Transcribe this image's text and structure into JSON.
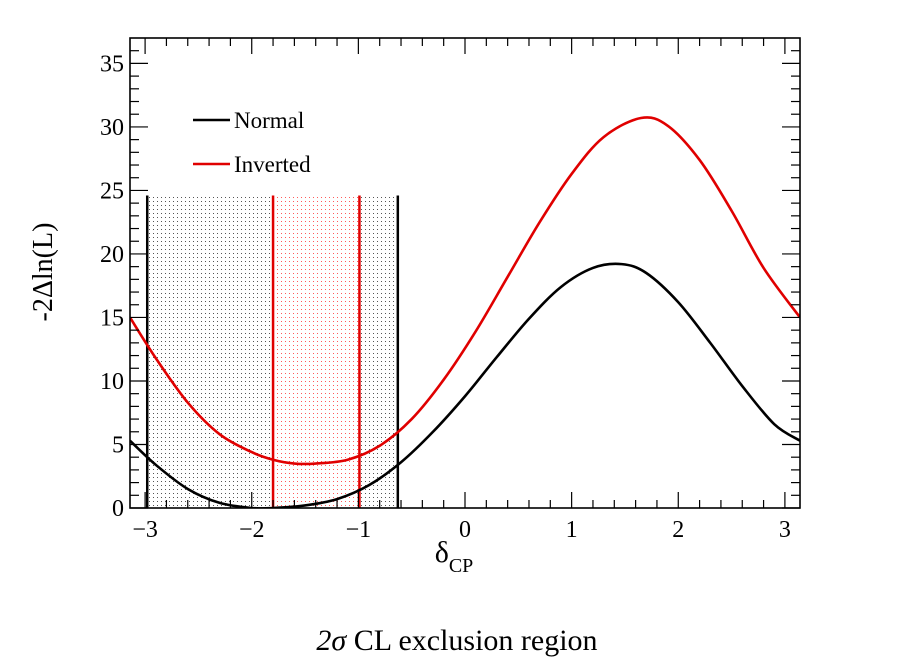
{
  "chart_data": {
    "type": "line",
    "xlabel": "δ",
    "xlabel_sub": "CP",
    "ylabel": "-2Δln(L)",
    "xlim": [
      -3.14159,
      3.14159
    ],
    "ylim": [
      0,
      37
    ],
    "xticks": [
      -3,
      -2,
      -1,
      0,
      1,
      2,
      3
    ],
    "xtick_labels": [
      "−3",
      "−2",
      "−1",
      "0",
      "1",
      "2",
      "3"
    ],
    "yticks": [
      0,
      5,
      10,
      15,
      20,
      25,
      30,
      35
    ],
    "ytick_labels": [
      "0",
      "5",
      "10",
      "15",
      "20",
      "25",
      "30",
      "35"
    ],
    "legend_position": "top-left",
    "series": [
      {
        "name": "Normal",
        "color": "#000000",
        "x": [
          -3.1416,
          -2.9,
          -2.6,
          -2.3,
          -2.0,
          -1.8,
          -1.5,
          -1.2,
          -0.9,
          -0.6,
          -0.3,
          0.0,
          0.3,
          0.6,
          0.9,
          1.2,
          1.47,
          1.7,
          2.0,
          2.3,
          2.6,
          2.9,
          3.1416
        ],
        "y": [
          5.3,
          3.4,
          1.5,
          0.4,
          0.0,
          0.0,
          0.2,
          0.7,
          1.8,
          3.6,
          6.0,
          8.8,
          11.9,
          14.9,
          17.4,
          18.9,
          19.2,
          18.5,
          16.2,
          13.0,
          9.6,
          6.6,
          5.3
        ]
      },
      {
        "name": "Inverted",
        "color": "#e00000",
        "x": [
          -3.1416,
          -2.9,
          -2.6,
          -2.3,
          -2.0,
          -1.8,
          -1.6,
          -1.4,
          -1.1,
          -0.8,
          -0.5,
          -0.2,
          0.1,
          0.4,
          0.7,
          1.0,
          1.3,
          1.65,
          1.9,
          2.2,
          2.5,
          2.8,
          3.1416
        ],
        "y": [
          15.0,
          11.8,
          8.3,
          5.8,
          4.4,
          3.8,
          3.5,
          3.5,
          3.8,
          4.9,
          7.0,
          10.1,
          13.9,
          18.2,
          22.5,
          26.3,
          29.2,
          30.7,
          30.1,
          27.4,
          23.4,
          18.9,
          15.0
        ]
      }
    ],
    "exclusion_regions": [
      {
        "name": "Normal",
        "color": "#000000",
        "x_low": -2.98,
        "x_high": -0.63,
        "y_top": 24.6
      },
      {
        "name": "Inverted",
        "color": "#e00000",
        "x_low": -1.8,
        "x_high": -0.99,
        "y_top": 24.6
      }
    ]
  },
  "caption": {
    "sigma": "2σ",
    "text": " CL exclusion region"
  }
}
